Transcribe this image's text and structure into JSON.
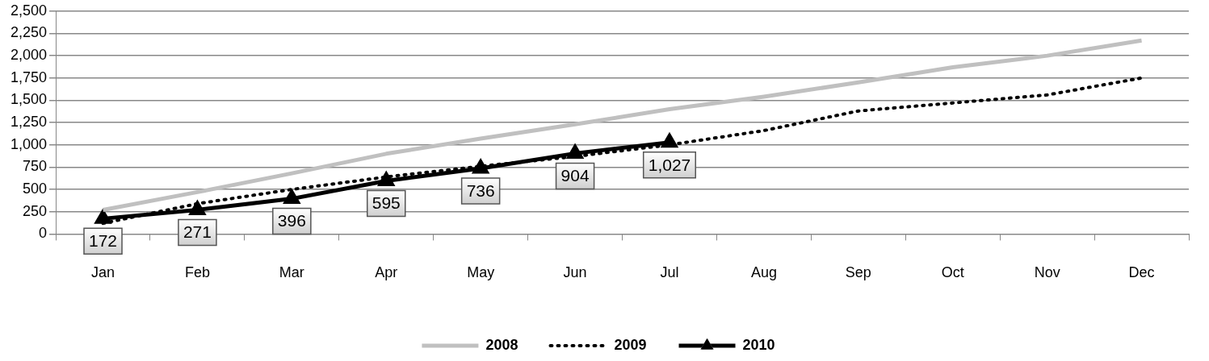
{
  "chart_data": {
    "type": "line",
    "categories": [
      "Jan",
      "Feb",
      "Mar",
      "Apr",
      "May",
      "Jun",
      "Jul",
      "Aug",
      "Sep",
      "Oct",
      "Nov",
      "Dec"
    ],
    "series": [
      {
        "name": "2008",
        "color": "#c0c0c0",
        "line_style": "solid",
        "marker": "none",
        "values": [
          270,
          470,
          680,
          900,
          1070,
          1230,
          1400,
          1540,
          1700,
          1870,
          2000,
          2170
        ]
      },
      {
        "name": "2009",
        "color": "#000000",
        "line_style": "dotted",
        "marker": "none",
        "values": [
          120,
          340,
          500,
          640,
          760,
          870,
          1000,
          1160,
          1380,
          1470,
          1560,
          1750
        ]
      },
      {
        "name": "2010",
        "color": "#000000",
        "line_style": "solid",
        "marker": "triangle",
        "data_labels": true,
        "value_labels": [
          "172",
          "271",
          "396",
          "595",
          "736",
          "904",
          "1,027",
          null,
          null,
          null,
          null,
          null
        ],
        "values": [
          172,
          271,
          396,
          595,
          736,
          904,
          1027,
          null,
          null,
          null,
          null,
          null
        ]
      }
    ],
    "ylim": [
      0,
      2500
    ],
    "yticks": [
      0,
      250,
      500,
      750,
      {
        "value": 1000,
        "label": "1,000"
      },
      {
        "value": 1250,
        "label": "1,250"
      },
      {
        "value": 1500,
        "label": "1,500"
      },
      {
        "value": 1750,
        "label": "1,750"
      },
      {
        "value": 2000,
        "label": "2,000"
      },
      {
        "value": 2250,
        "label": "2,250"
      },
      {
        "value": 2500,
        "label": "2,500"
      }
    ],
    "grid": "y",
    "legend": "bottom"
  }
}
